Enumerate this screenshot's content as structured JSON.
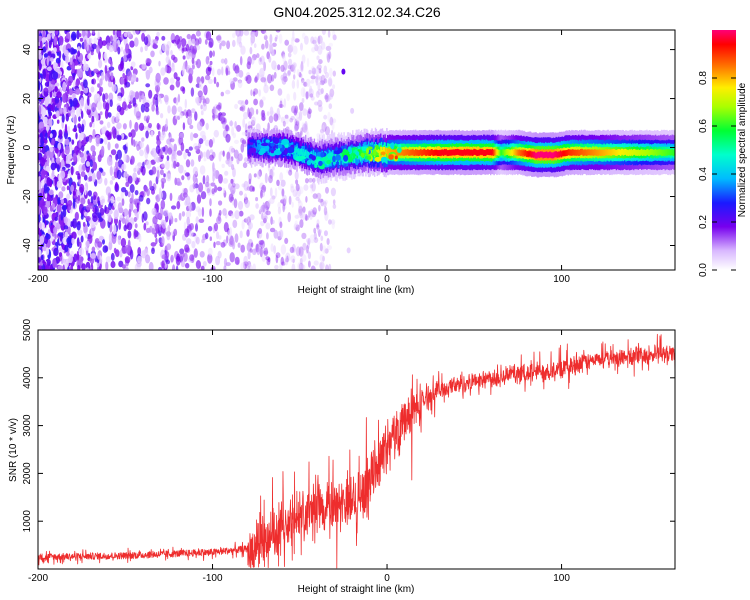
{
  "title": "GN04.2025.312.02.34.C26",
  "chart_data": [
    {
      "type": "heatmap",
      "title": "GN04.2025.312.02.34.C26",
      "xlabel": "Height of straight line (km)",
      "ylabel": "Frequency (Hz)",
      "xlim": [
        -200,
        165
      ],
      "ylim": [
        -50,
        48
      ],
      "xticks": [
        -200,
        -100,
        0,
        100
      ],
      "xtick_labels": [
        "-200",
        "-100",
        "0",
        "100"
      ],
      "yticks": [
        -40,
        -20,
        0,
        20,
        40
      ],
      "ytick_labels": [
        "-40",
        "-20",
        "0",
        "20",
        "40"
      ],
      "colorbar": {
        "label": "Normalized spectral amplitude",
        "range": [
          0,
          1
        ],
        "ticks": [
          0.0,
          0.2,
          0.4,
          0.6,
          0.8
        ],
        "tick_labels": [
          "0.0",
          "0.2",
          "0.4",
          "0.6",
          "0.8"
        ]
      },
      "noise_extent_x": [
        -200,
        -30
      ],
      "ridge": {
        "description_points_x": [
          -80,
          -70,
          -60,
          -50,
          -40,
          -30,
          -20,
          -10,
          0,
          10,
          30,
          60,
          65,
          75,
          85,
          95,
          105,
          165
        ],
        "frequency": [
          0,
          0,
          0,
          -2,
          -5,
          -4,
          -3,
          -2,
          -2,
          -2,
          -2,
          -2,
          -2,
          -2,
          -3,
          -3,
          -2,
          -2
        ],
        "amplitude": [
          0.3,
          0.4,
          0.45,
          0.45,
          0.5,
          0.5,
          0.55,
          0.65,
          0.8,
          0.85,
          0.95,
          0.95,
          0.6,
          0.85,
          1.0,
          1.0,
          0.9,
          0.6
        ]
      }
    },
    {
      "type": "line",
      "xlabel": "Height of straight line (km)",
      "ylabel": "SNR (10 * v/v)",
      "xlim": [
        -200,
        165
      ],
      "ylim": [
        0,
        5000
      ],
      "xticks": [
        -200,
        -100,
        0,
        100
      ],
      "xtick_labels": [
        "-200",
        "-100",
        "0",
        "100"
      ],
      "yticks": [
        1000,
        2000,
        3000,
        4000,
        5000
      ],
      "ytick_labels": [
        "1000",
        "2000",
        "3000",
        "4000",
        "5000"
      ],
      "color": "#ee2d2d",
      "series": [
        {
          "name": "SNR",
          "x": [
            -200,
            -150,
            -100,
            -80,
            -70,
            -60,
            -50,
            -40,
            -30,
            -20,
            -15,
            -10,
            -5,
            0,
            5,
            10,
            15,
            20,
            25,
            30,
            40,
            50,
            60,
            70,
            80,
            90,
            100,
            110,
            120,
            130,
            140,
            150,
            165
          ],
          "values": [
            250,
            280,
            350,
            420,
            650,
            900,
            1100,
            1250,
            1350,
            1450,
            1550,
            1900,
            2300,
            2600,
            2850,
            3050,
            3300,
            3500,
            3650,
            3750,
            3850,
            3950,
            4000,
            4080,
            4100,
            4150,
            4200,
            4300,
            4380,
            4400,
            4450,
            4480,
            4520
          ]
        }
      ]
    }
  ]
}
